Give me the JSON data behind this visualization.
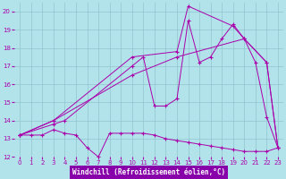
{
  "background_color": "#b2e2ea",
  "grid_color": "#90c4cc",
  "line_color": "#aa00aa",
  "marker": "+",
  "xlabel": "Windchill (Refroidissement éolien,°C)",
  "xlabel_bg": "#8800aa",
  "xlabel_fg": "#ffffff",
  "xlim": [
    -0.5,
    23.5
  ],
  "ylim": [
    12,
    20.5
  ],
  "yticks": [
    12,
    13,
    14,
    15,
    16,
    17,
    18,
    19,
    20
  ],
  "xticks": [
    0,
    1,
    2,
    3,
    4,
    5,
    6,
    7,
    8,
    9,
    10,
    11,
    12,
    13,
    14,
    15,
    16,
    17,
    18,
    19,
    20,
    21,
    22,
    23
  ],
  "lines": [
    {
      "x": [
        0,
        1,
        2,
        3,
        4,
        5,
        6,
        7,
        8,
        9,
        10,
        11,
        12,
        13,
        14,
        15,
        16,
        17,
        18,
        19,
        20,
        21,
        22,
        23
      ],
      "y": [
        13.2,
        13.2,
        13.2,
        13.5,
        13.3,
        13.2,
        12.5,
        12.0,
        13.3,
        13.3,
        13.3,
        13.3,
        13.2,
        13.0,
        12.9,
        12.8,
        12.7,
        12.6,
        12.5,
        12.4,
        12.3,
        12.3,
        12.3,
        12.5
      ]
    },
    {
      "x": [
        0,
        3,
        4,
        10,
        11,
        12,
        13,
        14,
        15,
        16,
        17,
        18,
        19,
        20,
        21,
        22,
        23
      ],
      "y": [
        13.2,
        13.8,
        14.0,
        17.0,
        17.5,
        14.8,
        14.8,
        15.2,
        19.5,
        17.2,
        17.5,
        18.5,
        19.3,
        18.5,
        17.2,
        14.2,
        12.5
      ]
    },
    {
      "x": [
        0,
        3,
        10,
        14,
        15,
        19,
        20,
        22,
        23
      ],
      "y": [
        13.2,
        14.0,
        17.5,
        17.8,
        20.3,
        19.2,
        18.5,
        17.2,
        12.5
      ]
    },
    {
      "x": [
        0,
        3,
        10,
        14,
        20,
        22,
        23
      ],
      "y": [
        13.2,
        14.0,
        16.5,
        17.5,
        18.5,
        17.2,
        12.5
      ]
    }
  ]
}
